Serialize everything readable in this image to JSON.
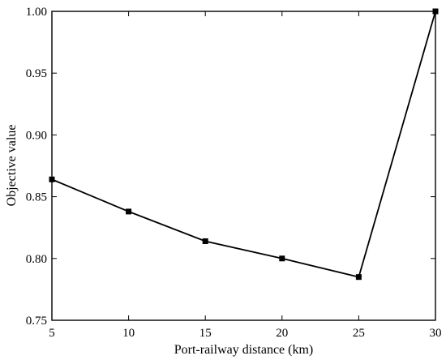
{
  "chart_data": {
    "type": "line",
    "xlabel": "Port-railway distance (km)",
    "ylabel": "Objective value",
    "xlim": [
      5,
      30
    ],
    "ylim": [
      0.75,
      1.0
    ],
    "xticks": [
      5,
      10,
      15,
      20,
      25,
      30
    ],
    "xtick_labels": [
      "5",
      "10",
      "15",
      "20",
      "25",
      "30"
    ],
    "yticks": [
      0.75,
      0.8,
      0.85,
      0.9,
      0.95,
      1.0
    ],
    "ytick_labels": [
      "0.75",
      "0.80",
      "0.85",
      "0.90",
      "0.95",
      "1.00"
    ],
    "grid": false,
    "legend": "none",
    "series": [
      {
        "x": [
          5,
          10,
          15,
          20,
          25,
          30
        ],
        "y": [
          0.864,
          0.838,
          0.814,
          0.8,
          0.785,
          1.0
        ],
        "color": "#000000",
        "marker": "square"
      }
    ]
  }
}
